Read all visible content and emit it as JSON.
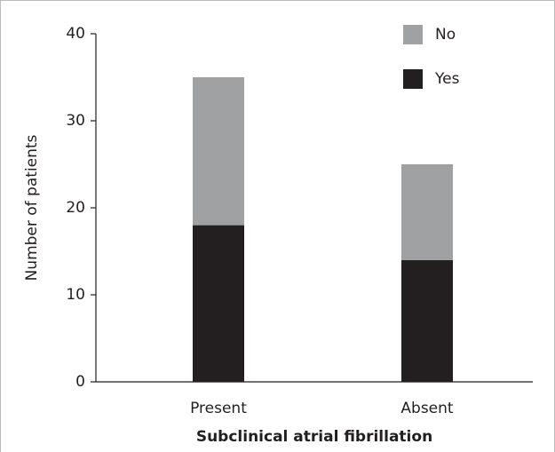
{
  "chart_data": {
    "type": "stacked-bar",
    "x_label": "Subclinical atrial fibrillation",
    "y_label": "Number of patients",
    "categories": [
      "Present",
      "Absent"
    ],
    "series": [
      {
        "name": "Yes",
        "color": "#231f20",
        "values": [
          18,
          14
        ]
      },
      {
        "name": "No",
        "color": "#a0a1a3",
        "values": [
          17,
          11
        ]
      }
    ],
    "ylim": [
      0,
      40
    ],
    "yticks": [
      0,
      10,
      20,
      30,
      40
    ]
  }
}
